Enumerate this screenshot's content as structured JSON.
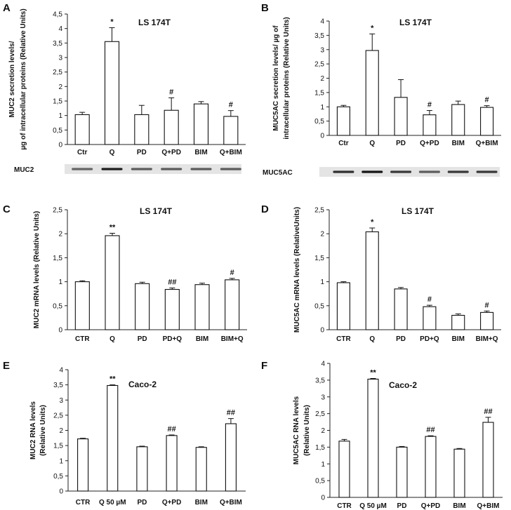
{
  "chart_data": [
    {
      "panel": "A",
      "type": "bar",
      "title": "LS 174T",
      "ylabel": [
        "MUC2  secretion  levels/",
        "µg of intracellular  proteins (Relative Units)"
      ],
      "categories": [
        "Ctr",
        "Q",
        "PD",
        "Q+PD",
        "BIM",
        "Q+BIM"
      ],
      "values": [
        1.03,
        3.55,
        1.03,
        1.18,
        1.4,
        0.97
      ],
      "errors": [
        0.08,
        0.48,
        0.32,
        0.43,
        0.08,
        0.2
      ],
      "annotations": [
        "",
        "*",
        "",
        "#",
        "",
        "#"
      ],
      "ylim": [
        0,
        4.5
      ],
      "yticks": [
        0,
        0.5,
        1,
        1.5,
        2,
        2.5,
        3,
        3.5,
        4,
        4.5
      ],
      "ytick_labels": [
        "0",
        "0,5",
        "1",
        "1,5",
        "2",
        "2,5",
        "3",
        "3,5",
        "4",
        "4,5"
      ],
      "blot_label": "MUC2",
      "blot_intensity": [
        0.55,
        0.95,
        0.6,
        0.6,
        0.6,
        0.6
      ]
    },
    {
      "panel": "B",
      "type": "bar",
      "title": "LS 174T",
      "ylabel": [
        "MUC5AC  secretion  levels/ µg of",
        "intracellular  proteins (Relative Units)"
      ],
      "categories": [
        "Ctr",
        "Q",
        "PD",
        "Q+PD",
        "BIM",
        "Q+BIM"
      ],
      "values": [
        1.0,
        2.97,
        1.33,
        0.72,
        1.08,
        0.98
      ],
      "errors": [
        0.05,
        0.58,
        0.62,
        0.15,
        0.12,
        0.06
      ],
      "annotations": [
        "",
        "*",
        "",
        "#",
        "",
        "#"
      ],
      "ylim": [
        0,
        4
      ],
      "yticks": [
        0,
        0.5,
        1,
        1.5,
        2,
        2.5,
        3,
        3.5,
        4
      ],
      "ytick_labels": [
        "0",
        "0,5",
        "1",
        "1,5",
        "2",
        "2,5",
        "3",
        "3,5",
        "4"
      ],
      "blot_label": "MUC5AC",
      "blot_intensity": [
        0.85,
        1.0,
        0.8,
        0.6,
        0.8,
        0.8
      ]
    },
    {
      "panel": "C",
      "type": "bar",
      "title": "LS 174T",
      "ylabel": [
        "MUC2 mRNA levels  (Relative Units)"
      ],
      "categories": [
        "CTR",
        "Q",
        "PD",
        "PD+Q",
        "BIM",
        "BIM+Q"
      ],
      "values": [
        1.0,
        1.96,
        0.96,
        0.84,
        0.94,
        1.04
      ],
      "errors": [
        0.02,
        0.05,
        0.03,
        0.03,
        0.03,
        0.03
      ],
      "annotations": [
        "",
        "**",
        "",
        "##",
        "",
        "#"
      ],
      "ylim": [
        0,
        2.5
      ],
      "yticks": [
        0,
        0.5,
        1,
        1.5,
        2,
        2.5
      ],
      "ytick_labels": [
        "0",
        "0,5",
        "1",
        "1,5",
        "2",
        "2,5"
      ]
    },
    {
      "panel": "D",
      "type": "bar",
      "title": "LS 174T",
      "ylabel": [
        "MUC5AC mRNA levels  (RelativeUnits)"
      ],
      "categories": [
        "CTR",
        "Q",
        "PD",
        "PD+Q",
        "BIM",
        "BIM+Q"
      ],
      "values": [
        0.98,
        2.04,
        0.85,
        0.48,
        0.3,
        0.36
      ],
      "errors": [
        0.02,
        0.08,
        0.03,
        0.03,
        0.03,
        0.03
      ],
      "annotations": [
        "",
        "*",
        "",
        "#",
        "",
        "#"
      ],
      "ylim": [
        0,
        2.5
      ],
      "yticks": [
        0,
        0.5,
        1,
        1.5,
        2,
        2.5
      ],
      "ytick_labels": [
        "0",
        "0,5",
        "1",
        "1,5",
        "2",
        "2,5"
      ]
    },
    {
      "panel": "E",
      "type": "bar",
      "title": "Caco-2",
      "ylabel": [
        "MUC2 RNA levels",
        "(Relative Units)"
      ],
      "categories": [
        "CTR",
        "Q 50 µM",
        "PD",
        "Q+PD",
        "BIM",
        "Q+BIM"
      ],
      "values": [
        1.72,
        3.48,
        1.46,
        1.83,
        1.44,
        2.22
      ],
      "errors": [
        0.02,
        0.02,
        0.02,
        0.02,
        0.02,
        0.17
      ],
      "annotations": [
        "",
        "**",
        "",
        "##",
        "",
        "##"
      ],
      "ylim": [
        0,
        4
      ],
      "yticks": [
        0,
        0.5,
        1,
        1.5,
        2,
        2.5,
        3,
        3.5,
        4
      ],
      "ytick_labels": [
        "0",
        "0,5",
        "1",
        "1,5",
        "2",
        "2,5",
        "3",
        "3,5",
        "4"
      ]
    },
    {
      "panel": "F",
      "type": "bar",
      "title": "Caco-2",
      "ylabel": [
        "MUC5AC RNA  levels",
        "(Relative Units)"
      ],
      "categories": [
        "CTR",
        "Q 50 µM",
        "PD",
        "Q+PD",
        "BIM",
        "Q+BIM"
      ],
      "values": [
        1.68,
        3.53,
        1.5,
        1.82,
        1.44,
        2.24
      ],
      "errors": [
        0.05,
        0.02,
        0.02,
        0.02,
        0.02,
        0.15
      ],
      "annotations": [
        "",
        "**",
        "",
        "##",
        "",
        "##"
      ],
      "ylim": [
        0,
        4
      ],
      "yticks": [
        0,
        0.5,
        1,
        1.5,
        2,
        2.5,
        3,
        3.5,
        4
      ],
      "ytick_labels": [
        "0",
        "0,5",
        "1",
        "1,5",
        "2",
        "2,5",
        "3",
        "3,5",
        "4"
      ]
    }
  ]
}
